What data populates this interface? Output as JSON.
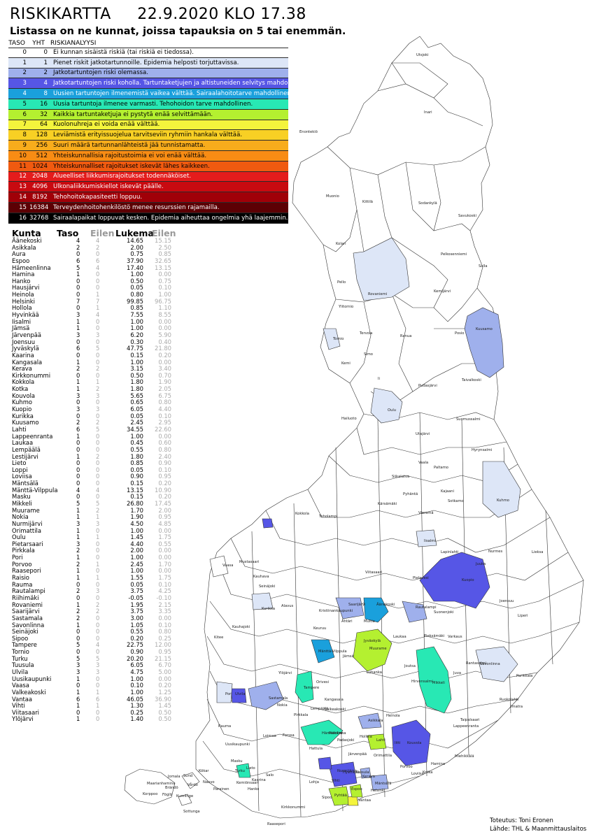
{
  "title": "RISKIKARTTA     22.9.2020 KLO 17.38",
  "subtitle": "Listassa on ne kunnat, joissa tapauksia on 5 tai enemmän.",
  "legend": {
    "headers": {
      "taso": "TASO",
      "yht": "YHT",
      "analysis": "RISKIANALYYSI"
    },
    "rows": [
      {
        "taso": "0",
        "yht": "0",
        "text": "Ei kunnan sisäistä riskiä (tai riskiä ei tiedossa).",
        "color": "#ffffff",
        "fg": "#000"
      },
      {
        "taso": "1",
        "yht": "1",
        "text": "Pienet riskit jatkotartunnoille. Epidemia helposti torjuttavissa.",
        "color": "#dde6f7",
        "fg": "#000"
      },
      {
        "taso": "2",
        "yht": "2",
        "text": "Jatkotartuntojen riski olemassa.",
        "color": "#9fb0ec",
        "fg": "#000"
      },
      {
        "taso": "3",
        "yht": "4",
        "text": "Jatkotartuntojen riski koholla. Tartuntaketjujen ja altistuneiden selvitys mahdollista.",
        "color": "#5656e6",
        "fg": "#fff"
      },
      {
        "taso": "4",
        "yht": "8",
        "text": "Uusien tartuntojen ilmenemistä vaikea välttää. Sairaalahoitotarve mahdollinen.",
        "color": "#1aa0dc",
        "fg": "#fff"
      },
      {
        "taso": "5",
        "yht": "16",
        "text": "Uusia tartuntoja ilmenee varmasti. Tehohoidon tarve mahdollinen.",
        "color": "#28e8b4",
        "fg": "#000"
      },
      {
        "taso": "6",
        "yht": "32",
        "text": "Kaikkia tartuntaketjuja ei pystytä enää selvittämään.",
        "color": "#b4f030",
        "fg": "#000"
      },
      {
        "taso": "7",
        "yht": "64",
        "text": "Kuolonuhreja ei voida enää välttää.",
        "color": "#f4f43c",
        "fg": "#000"
      },
      {
        "taso": "8",
        "yht": "128",
        "text": "Leviämistä erityissuojelua tarvitseviin ryhmiin hankala välttää.",
        "color": "#f8d024",
        "fg": "#000"
      },
      {
        "taso": "9",
        "yht": "256",
        "text": "Suuri määrä tartunnanlähteistä jää tunnistamatta.",
        "color": "#f8ac1c",
        "fg": "#000"
      },
      {
        "taso": "10",
        "yht": "512",
        "text": "Yhteiskunnallisia rajoitustoimia ei voi enää välttää.",
        "color": "#f88c14",
        "fg": "#000"
      },
      {
        "taso": "11",
        "yht": "1024",
        "text": "Yhteiskunnalliset rajoitukset iskevät lähes kaikkeen.",
        "color": "#f05a10",
        "fg": "#000"
      },
      {
        "taso": "12",
        "yht": "2048",
        "text": "Alueelliset liikkumisrajoitukset todennäköiset.",
        "color": "#e41c1c",
        "fg": "#fff"
      },
      {
        "taso": "13",
        "yht": "4096",
        "text": "Ulkonaliikkumiskiellot iskevät päälle.",
        "color": "#c80a10",
        "fg": "#fff"
      },
      {
        "taso": "14",
        "yht": "8192",
        "text": "Tehohoitokapasiteetti loppuu.",
        "color": "#a00008",
        "fg": "#fff"
      },
      {
        "taso": "15",
        "yht": "16384",
        "text": "Terveydenhoitohenkilöstö menee resurssien rajamailla.",
        "color": "#5c0004",
        "fg": "#fff"
      },
      {
        "taso": "16",
        "yht": "32768",
        "text": "Sairaalapaikat loppuvat kesken. Epidemia aiheuttaa ongelmia yhä laajemmin.",
        "color": "#000000",
        "fg": "#fff"
      }
    ]
  },
  "list": {
    "headers": {
      "kunta": "Kunta",
      "taso": "Taso",
      "eilen": "Eilen",
      "lukema": "Lukema",
      "eilen2": "Eilen"
    },
    "rows": [
      [
        "Äänekoski",
        "4",
        "4",
        "14.65",
        "15.15"
      ],
      [
        "Asikkala",
        "2",
        "2",
        "2.00",
        "2.50"
      ],
      [
        "Aura",
        "0",
        "0",
        "0.75",
        "0.85"
      ],
      [
        "Espoo",
        "6",
        "6",
        "37.90",
        "32.65"
      ],
      [
        "Hämeenlinna",
        "5",
        "4",
        "17.40",
        "13.15"
      ],
      [
        "Hamina",
        "1",
        "0",
        "1.00",
        "0.00"
      ],
      [
        "Hanko",
        "0",
        "0",
        "0.50",
        "0.75"
      ],
      [
        "Hausjärvi",
        "0",
        "0",
        "0.05",
        "0.10"
      ],
      [
        "Heinola",
        "0",
        "1",
        "0.80",
        "1.00"
      ],
      [
        "Helsinki",
        "7",
        "7",
        "99.85",
        "96.75"
      ],
      [
        "Hollola",
        "0",
        "1",
        "0.85",
        "1.10"
      ],
      [
        "Hyvinkää",
        "3",
        "4",
        "7.55",
        "8.55"
      ],
      [
        "Iisalmi",
        "1",
        "0",
        "1.00",
        "0.00"
      ],
      [
        "Jämsä",
        "1",
        "0",
        "1.00",
        "0.00"
      ],
      [
        "Järvenpää",
        "3",
        "3",
        "6.20",
        "5.90"
      ],
      [
        "Joensuu",
        "0",
        "0",
        "0.30",
        "0.40"
      ],
      [
        "Jyväskylä",
        "6",
        "5",
        "47.75",
        "21.80"
      ],
      [
        "Kaarina",
        "0",
        "0",
        "0.15",
        "0.20"
      ],
      [
        "Kangasala",
        "1",
        "0",
        "1.00",
        "0.00"
      ],
      [
        "Kerava",
        "2",
        "2",
        "3.15",
        "3.40"
      ],
      [
        "Kirkkonummi",
        "0",
        "0",
        "0.50",
        "0.70"
      ],
      [
        "Kokkola",
        "1",
        "1",
        "1.80",
        "1.90"
      ],
      [
        "Kotka",
        "1",
        "2",
        "1.80",
        "2.05"
      ],
      [
        "Kouvola",
        "3",
        "3",
        "5.65",
        "6.75"
      ],
      [
        "Kuhmo",
        "0",
        "0",
        "0.65",
        "0.80"
      ],
      [
        "Kuopio",
        "3",
        "3",
        "6.05",
        "4.40"
      ],
      [
        "Kurikka",
        "0",
        "0",
        "0.05",
        "0.10"
      ],
      [
        "Kuusamo",
        "2",
        "2",
        "2.45",
        "2.95"
      ],
      [
        "Lahti",
        "6",
        "5",
        "34.55",
        "22.60"
      ],
      [
        "Lappeenranta",
        "1",
        "0",
        "1.00",
        "0.00"
      ],
      [
        "Laukaa",
        "0",
        "0",
        "0.45",
        "0.60"
      ],
      [
        "Lempäälä",
        "0",
        "0",
        "0.55",
        "0.80"
      ],
      [
        "Lestijärvi",
        "1",
        "2",
        "1.80",
        "2.40"
      ],
      [
        "Lieto",
        "0",
        "0",
        "0.85",
        "0.90"
      ],
      [
        "Loppi",
        "0",
        "0",
        "0.05",
        "0.10"
      ],
      [
        "Loviisa",
        "0",
        "0",
        "0.90",
        "0.95"
      ],
      [
        "Mäntsälä",
        "0",
        "0",
        "0.15",
        "0.20"
      ],
      [
        "Mänttä-Vilppula",
        "4",
        "4",
        "13.15",
        "10.90"
      ],
      [
        "Masku",
        "0",
        "0",
        "0.15",
        "0.20"
      ],
      [
        "Mikkeli",
        "5",
        "5",
        "26.80",
        "17.45"
      ],
      [
        "Muurame",
        "1",
        "2",
        "1.70",
        "2.00"
      ],
      [
        "Nokia",
        "1",
        "1",
        "1.90",
        "0.95"
      ],
      [
        "Nurmijärvi",
        "3",
        "3",
        "4.50",
        "4.85"
      ],
      [
        "Orimattila",
        "1",
        "0",
        "1.00",
        "0.00"
      ],
      [
        "Oulu",
        "1",
        "1",
        "1.45",
        "1.75"
      ],
      [
        "Pietarsaari",
        "3",
        "0",
        "4.40",
        "0.55"
      ],
      [
        "Pirkkala",
        "2",
        "0",
        "2.00",
        "0.00"
      ],
      [
        "Pori",
        "1",
        "0",
        "1.00",
        "0.00"
      ],
      [
        "Porvoo",
        "2",
        "1",
        "2.45",
        "1.70"
      ],
      [
        "Raasepori",
        "1",
        "0",
        "1.00",
        "0.00"
      ],
      [
        "Raisio",
        "1",
        "1",
        "1.55",
        "1.75"
      ],
      [
        "Rauma",
        "0",
        "0",
        "0.05",
        "0.10"
      ],
      [
        "Rautalampi",
        "2",
        "3",
        "3.75",
        "4.25"
      ],
      [
        "Riihimäki",
        "0",
        "0",
        "-0.05",
        "-0.10"
      ],
      [
        "Rovaniemi",
        "1",
        "2",
        "1.95",
        "2.15"
      ],
      [
        "Saarijärvi",
        "2",
        "2",
        "3.75",
        "3.35"
      ],
      [
        "Sastamala",
        "2",
        "0",
        "3.00",
        "0.00"
      ],
      [
        "Savonlinna",
        "1",
        "0",
        "1.05",
        "0.10"
      ],
      [
        "Seinäjoki",
        "0",
        "0",
        "0.55",
        "0.80"
      ],
      [
        "Sipoo",
        "0",
        "0",
        "0.20",
        "0.25"
      ],
      [
        "Tampere",
        "5",
        "4",
        "22.75",
        "12.00"
      ],
      [
        "Tornio",
        "0",
        "0",
        "0.90",
        "0.95"
      ],
      [
        "Turku",
        "5",
        "5",
        "20.20",
        "21.15"
      ],
      [
        "Tuusula",
        "3",
        "3",
        "6.05",
        "6.70"
      ],
      [
        "Ulvila",
        "3",
        "3",
        "4.75",
        "5.00"
      ],
      [
        "Uusikaupunki",
        "1",
        "0",
        "1.00",
        "0.00"
      ],
      [
        "Vaasa",
        "0",
        "0",
        "0.10",
        "0.20"
      ],
      [
        "Valkeakoski",
        "1",
        "1",
        "1.00",
        "1.25"
      ],
      [
        "Vantaa",
        "6",
        "6",
        "46.05",
        "36.90"
      ],
      [
        "Vihti",
        "1",
        "1",
        "1.30",
        "1.45"
      ],
      [
        "Viitasaari",
        "0",
        "0",
        "0.25",
        "0.50"
      ],
      [
        "Ylöjärvi",
        "1",
        "0",
        "1.40",
        "0.50"
      ]
    ]
  },
  "map": {
    "labels": [
      "Utsjoki",
      "Inari",
      "Enontekiö",
      "Kittilä",
      "Sodankylä",
      "Muonio",
      "Savukoski",
      "Kolari",
      "Pelkosenniemi",
      "Salla",
      "Pello",
      "Rovaniemi",
      "Kemijärvi",
      "Ylitornio",
      "Tornio",
      "Tervola",
      "Ranua",
      "Posio",
      "Kuusamo",
      "Simo",
      "Kemi",
      "Ii",
      "Taivalkoski",
      "Pudasjärvi",
      "Oulu",
      "Suomussalmi",
      "Hailuoto",
      "Utajärvi",
      "Hyrynsalmi",
      "Kuhmo",
      "Vaala",
      "Paltamo",
      "Kajaani",
      "Sotkamo",
      "Siikalatva",
      "Pyhäntä",
      "Kokkola",
      "Toholampi",
      "Kärsämäki",
      "Vieremä",
      "Iisalmi",
      "Nurmes",
      "Lieksa",
      "Vaasa",
      "Seinäjoki",
      "Kauhava",
      "Alavus",
      "Viitasaari",
      "Pielavesi",
      "Kuopio",
      "Juuka",
      "Lapinlahti",
      "Mustasaari",
      "Kauhajoki",
      "Kurikka",
      "Saarijärvi",
      "Äänekoski",
      "Rautalampi",
      "Suonenjoki",
      "Joensuu",
      "Liperi",
      "Kitee",
      "Kristiinankaupunki",
      "Ähtäri",
      "Multia",
      "Jyväskylä",
      "Laukaa",
      "Pieksämäki",
      "Varkaus",
      "Savonlinna",
      "Parikkala",
      "Keuruu",
      "Mänttä-Vilppula",
      "Muurame",
      "Jämsä",
      "Mikkeli",
      "Juva",
      "Rantasalmi",
      "Pori",
      "Ulvila",
      "Ylöjärvi",
      "Tampere",
      "Orivesi",
      "Kangasala",
      "Luhanka",
      "Joutsa",
      "Hirvensalmi",
      "Ruokolahti",
      "Imatra",
      "Rauma",
      "Sastamala",
      "Nokia",
      "Pirkkala",
      "Lempäälä",
      "Valkeakoski",
      "Pälkäne",
      "Padasjoki",
      "Heinola",
      "Asikkala",
      "Kouvola",
      "Lappeenranta",
      "Taipalsaari",
      "Uusikaupunki",
      "Loimaa",
      "Forssa",
      "Hämeenlinna",
      "Hattula",
      "Lahti",
      "Hollola",
      "Orimattila",
      "Iitti",
      "Kotka",
      "Hamina",
      "Miehikkälä",
      "Masku",
      "Turku",
      "Kaarina",
      "Lieto",
      "Salo",
      "Lohja",
      "Vihti",
      "Nurmijärvi",
      "Hyvinkää",
      "Tuusula",
      "Kerava",
      "Järvenpää",
      "Mäntsälä",
      "Porvoo",
      "Loviisa",
      "Pyhtää",
      "Espoo",
      "Vantaa",
      "Helsinki",
      "Sipoo",
      "Kirkkonummi",
      "Raasepori",
      "Hanko",
      "Kemiönsaari",
      "Parainen",
      "Nauvo",
      "Korppoo",
      "Maarianhamina",
      "Jomala",
      "Sund",
      "Vårdö",
      "Kumlinge",
      "Sottunga",
      "Kökar",
      "Brändö",
      "Föglö",
      "Lumparland"
    ]
  },
  "credits": {
    "line1": "Toteutus: Toni Eronen",
    "line2": "Lähde: THL & Maanmittauslaitos"
  }
}
